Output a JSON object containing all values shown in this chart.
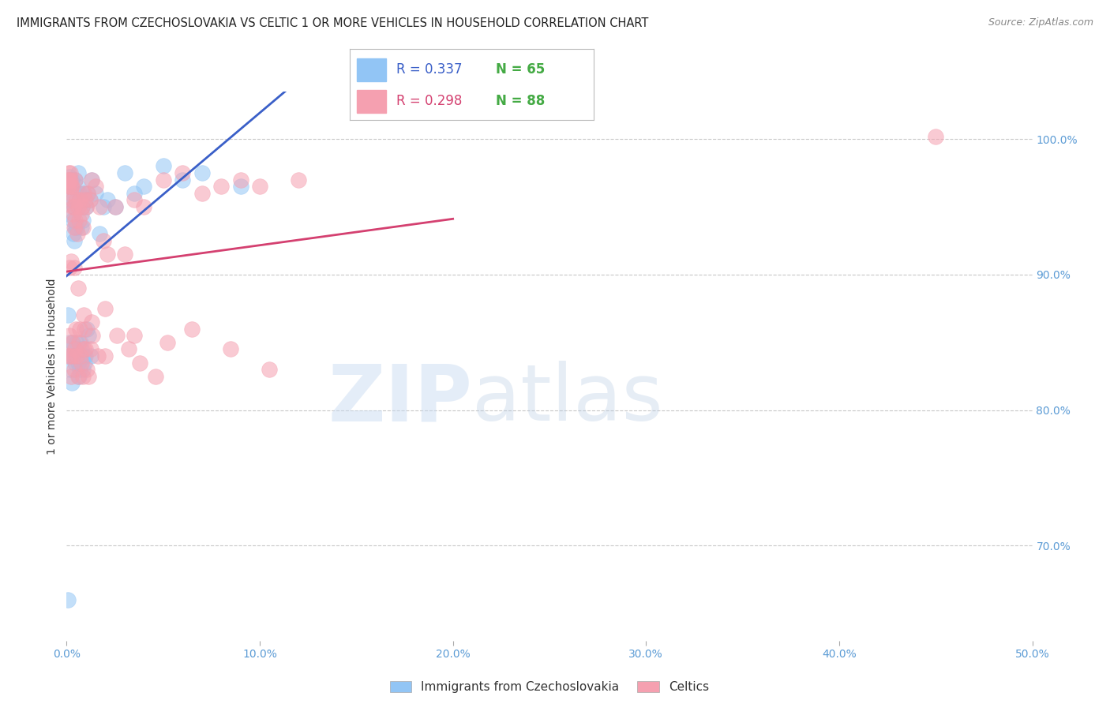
{
  "title": "IMMIGRANTS FROM CZECHOSLOVAKIA VS CELTIC 1 OR MORE VEHICLES IN HOUSEHOLD CORRELATION CHART",
  "source": "Source: ZipAtlas.com",
  "ylabel": "1 or more Vehicles in Household",
  "legend_label_blue": "Immigrants from Czechoslovakia",
  "legend_label_pink": "Celtics",
  "R_blue": 0.337,
  "N_blue": 65,
  "R_pink": 0.298,
  "N_pink": 88,
  "color_blue": "#92c5f5",
  "color_pink": "#f5a0b0",
  "line_color_blue": "#3a5fc8",
  "line_color_pink": "#d44070",
  "right_yticks": [
    70.0,
    80.0,
    90.0,
    100.0
  ],
  "right_yticklabels": [
    "70.0%",
    "80.0%",
    "90.0%",
    "100.0%"
  ],
  "xlim": [
    0.0,
    50.0
  ],
  "ylim": [
    63.0,
    103.5
  ],
  "watermark_zip": "ZIP",
  "watermark_atlas": "atlas",
  "blue_x": [
    0.05,
    0.1,
    0.12,
    0.15,
    0.18,
    0.2,
    0.22,
    0.25,
    0.28,
    0.3,
    0.32,
    0.35,
    0.38,
    0.4,
    0.42,
    0.45,
    0.5,
    0.55,
    0.6,
    0.65,
    0.7,
    0.75,
    0.8,
    0.85,
    0.9,
    0.95,
    1.0,
    1.1,
    1.2,
    1.3,
    1.5,
    1.7,
    1.9,
    2.1,
    2.5,
    3.0,
    3.5,
    4.0,
    5.0,
    6.0,
    7.0,
    9.0,
    0.08,
    0.13,
    0.17,
    0.22,
    0.27,
    0.33,
    0.37,
    0.43,
    0.48,
    0.53,
    0.58,
    0.63,
    0.68,
    0.73,
    0.78,
    0.83,
    0.88,
    0.93,
    0.98,
    1.05,
    1.15,
    1.25,
    0.05
  ],
  "blue_y": [
    94.5,
    97.0,
    96.5,
    97.2,
    97.0,
    96.8,
    95.5,
    96.5,
    97.0,
    95.5,
    94.0,
    93.0,
    92.5,
    95.0,
    93.5,
    97.0,
    93.5,
    96.5,
    97.5,
    96.0,
    95.5,
    93.5,
    95.0,
    94.0,
    96.0,
    95.5,
    95.0,
    96.0,
    95.5,
    97.0,
    96.0,
    93.0,
    95.0,
    95.5,
    95.0,
    97.5,
    96.0,
    96.5,
    98.0,
    97.0,
    97.5,
    96.5,
    87.0,
    85.0,
    83.0,
    84.0,
    82.0,
    85.0,
    84.0,
    83.5,
    84.0,
    85.0,
    83.5,
    82.5,
    83.0,
    85.0,
    84.5,
    83.0,
    84.0,
    83.5,
    84.0,
    86.0,
    85.5,
    84.0,
    66.0
  ],
  "pink_x": [
    0.05,
    0.08,
    0.1,
    0.12,
    0.15,
    0.17,
    0.2,
    0.22,
    0.25,
    0.28,
    0.3,
    0.32,
    0.35,
    0.38,
    0.4,
    0.42,
    0.45,
    0.5,
    0.55,
    0.6,
    0.65,
    0.7,
    0.75,
    0.8,
    0.85,
    0.9,
    0.95,
    1.0,
    1.1,
    1.2,
    1.3,
    1.5,
    1.7,
    1.9,
    2.1,
    2.5,
    3.0,
    3.5,
    4.0,
    5.0,
    6.0,
    7.0,
    8.0,
    9.0,
    10.0,
    12.0,
    0.07,
    0.13,
    0.18,
    0.23,
    0.28,
    0.33,
    0.38,
    0.43,
    0.48,
    0.53,
    0.58,
    0.63,
    0.68,
    0.73,
    0.78,
    0.83,
    0.88,
    0.93,
    0.98,
    1.05,
    1.15,
    1.25,
    1.35,
    1.6,
    2.0,
    2.6,
    3.2,
    3.8,
    4.6,
    5.2,
    6.5,
    8.5,
    10.5,
    0.15,
    0.25,
    0.4,
    0.6,
    0.9,
    1.3,
    2.0,
    3.5,
    45.0
  ],
  "pink_y": [
    96.5,
    97.0,
    96.5,
    97.5,
    97.0,
    97.5,
    97.0,
    96.5,
    96.0,
    96.5,
    95.5,
    95.0,
    94.5,
    93.5,
    95.0,
    94.0,
    97.0,
    95.5,
    93.0,
    95.0,
    94.0,
    95.5,
    94.5,
    95.0,
    93.5,
    96.0,
    95.5,
    95.0,
    96.0,
    95.5,
    97.0,
    96.5,
    95.0,
    92.5,
    91.5,
    95.0,
    91.5,
    95.5,
    95.0,
    97.0,
    97.5,
    96.0,
    96.5,
    97.0,
    96.5,
    97.0,
    84.0,
    85.5,
    84.0,
    82.5,
    85.0,
    84.0,
    83.0,
    84.5,
    86.0,
    84.0,
    82.5,
    85.0,
    86.0,
    84.0,
    83.5,
    82.5,
    84.5,
    86.0,
    84.5,
    83.0,
    82.5,
    84.5,
    85.5,
    84.0,
    84.0,
    85.5,
    84.5,
    83.5,
    82.5,
    85.0,
    86.0,
    84.5,
    83.0,
    90.5,
    91.0,
    90.5,
    89.0,
    87.0,
    86.5,
    87.5,
    85.5,
    100.2
  ]
}
